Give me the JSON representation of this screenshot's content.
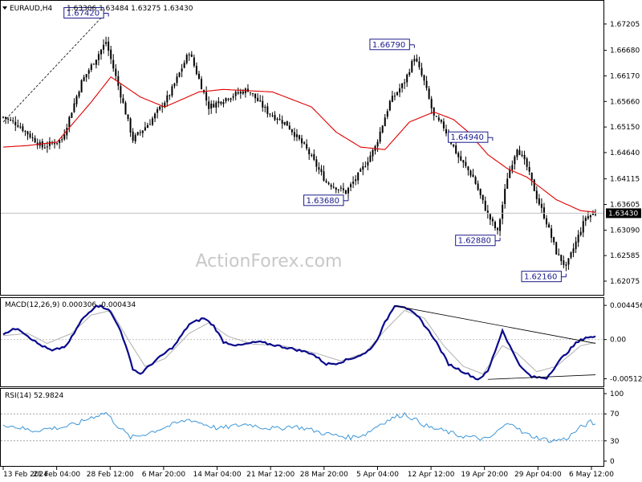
{
  "header": {
    "symbol": "EURAUD,H4",
    "ohlc": "1.63306 1.63484 1.63275 1.63430"
  },
  "watermark": "ActionForex.com",
  "colors": {
    "candle": "#000000",
    "moving_average": "#e00000",
    "macd_line": "#0a0a8c",
    "macd_signal": "#b0b0b0",
    "rsi_line": "#3c96d8",
    "tag_border": "#1a1a8c",
    "trendline": "#000000"
  },
  "chart_data": [
    {
      "type": "candlestick",
      "title": "EURAUD,H4",
      "ylim": [
        1.6185,
        1.6762
      ],
      "yticks": [
        1.67205,
        1.6668,
        1.6617,
        1.6566,
        1.6515,
        1.6464,
        1.64115,
        1.63605,
        1.6309,
        1.62585,
        1.62075
      ],
      "ytick_labels": [
        "1.67205",
        "1.66680",
        "1.66170",
        "1.65660",
        "1.65150",
        "1.64640",
        "1.64115",
        "1.63605",
        "1.63090",
        "1.62585",
        "1.62075"
      ],
      "current_price": 1.6343,
      "current_price_label": "1.63430",
      "xtick_labels": [
        "13 Feb 2024",
        "21 Feb 04:00",
        "28 Feb 12:00",
        "6 Mar 20:00",
        "14 Mar 04:00",
        "21 Mar 12:00",
        "28 Mar 20:00",
        "5 Apr 04:00",
        "12 Apr 12:00",
        "19 Apr 20:00",
        "29 Apr 04:00",
        "6 May 12:00"
      ],
      "anchors": [
        [
          0,
          1.6535
        ],
        [
          6,
          1.652
        ],
        [
          16,
          1.6475
        ],
        [
          24,
          1.649
        ],
        [
          32,
          1.6605
        ],
        [
          42,
          1.6685
        ],
        [
          46,
          1.6615
        ],
        [
          53,
          1.649
        ],
        [
          60,
          1.6525
        ],
        [
          68,
          1.658
        ],
        [
          76,
          1.6665
        ],
        [
          84,
          1.6555
        ],
        [
          92,
          1.6575
        ],
        [
          100,
          1.659
        ],
        [
          108,
          1.6545
        ],
        [
          116,
          1.652
        ],
        [
          124,
          1.647
        ],
        [
          132,
          1.6405
        ],
        [
          140,
          1.6385
        ],
        [
          146,
          1.6425
        ],
        [
          152,
          1.6475
        ],
        [
          158,
          1.6565
        ],
        [
          164,
          1.6605
        ],
        [
          168,
          1.6655
        ],
        [
          172,
          1.6605
        ],
        [
          176,
          1.6535
        ],
        [
          180,
          1.6515
        ],
        [
          186,
          1.6455
        ],
        [
          192,
          1.6415
        ],
        [
          198,
          1.634
        ],
        [
          202,
          1.6305
        ],
        [
          206,
          1.6415
        ],
        [
          210,
          1.6475
        ],
        [
          214,
          1.6435
        ],
        [
          218,
          1.6375
        ],
        [
          222,
          1.6325
        ],
        [
          226,
          1.6265
        ],
        [
          230,
          1.6235
        ],
        [
          234,
          1.6285
        ],
        [
          238,
          1.6335
        ],
        [
          242,
          1.6343
        ]
      ],
      "ma_anchors": [
        [
          0,
          1.6475
        ],
        [
          10,
          1.6478
        ],
        [
          22,
          1.6485
        ],
        [
          36,
          1.6565
        ],
        [
          44,
          1.6615
        ],
        [
          56,
          1.6575
        ],
        [
          66,
          1.6555
        ],
        [
          80,
          1.6585
        ],
        [
          90,
          1.659
        ],
        [
          110,
          1.6585
        ],
        [
          126,
          1.6555
        ],
        [
          136,
          1.6505
        ],
        [
          146,
          1.6475
        ],
        [
          156,
          1.647
        ],
        [
          166,
          1.6525
        ],
        [
          176,
          1.6545
        ],
        [
          184,
          1.653
        ],
        [
          190,
          1.6505
        ],
        [
          198,
          1.646
        ],
        [
          206,
          1.6432
        ],
        [
          214,
          1.6415
        ],
        [
          226,
          1.637
        ],
        [
          236,
          1.6348
        ],
        [
          242,
          1.6345
        ]
      ],
      "price_tags": [
        {
          "label": "1.67420",
          "price": 1.6742,
          "bar": 43,
          "side": "left"
        },
        {
          "label": "1.66790",
          "price": 1.6679,
          "bar": 168,
          "side": "left"
        },
        {
          "label": "1.63680",
          "price": 1.6368,
          "bar": 141,
          "side": "left"
        },
        {
          "label": "1.64940",
          "price": 1.6494,
          "bar": 200,
          "side": "left"
        },
        {
          "label": "1.62880",
          "price": 1.6288,
          "bar": 203,
          "side": "left"
        },
        {
          "label": "1.62160",
          "price": 1.6216,
          "bar": 230,
          "side": "left"
        }
      ]
    },
    {
      "type": "line",
      "title": "MACD(12,26,9) 0.000306 -0.000434",
      "ylim": [
        -0.0058,
        0.0051
      ],
      "yticks": [
        0.004456,
        0.0,
        -0.00512
      ],
      "ytick_labels": [
        "0.004456",
        "0.00",
        "-0.00512"
      ],
      "series": [
        {
          "anchors": [
            [
              0,
              0.0008
            ],
            [
              6,
              0.0015
            ],
            [
              14,
              -0.0005
            ],
            [
              20,
              -0.0015
            ],
            [
              26,
              -0.0008
            ],
            [
              32,
              0.0025
            ],
            [
              38,
              0.0045
            ],
            [
              43,
              0.004
            ],
            [
              48,
              0.0012
            ],
            [
              53,
              -0.0038
            ],
            [
              56,
              -0.0045
            ],
            [
              62,
              -0.0028
            ],
            [
              70,
              -0.0008
            ],
            [
              76,
              0.002
            ],
            [
              82,
              0.0028
            ],
            [
              86,
              0.0018
            ],
            [
              90,
              -0.0003
            ],
            [
              96,
              -0.0008
            ],
            [
              104,
              -0.0003
            ],
            [
              112,
              -0.0008
            ],
            [
              118,
              -0.0012
            ],
            [
              126,
              -0.0018
            ],
            [
              132,
              -0.0032
            ],
            [
              136,
              -0.0031
            ],
            [
              142,
              -0.0025
            ],
            [
              148,
              -0.0018
            ],
            [
              152,
              -0.0005
            ],
            [
              156,
              0.0022
            ],
            [
              160,
              0.0045
            ],
            [
              164,
              0.0043
            ],
            [
              170,
              0.0028
            ],
            [
              176,
              0.0002
            ],
            [
              182,
              -0.0032
            ],
            [
              188,
              -0.0042
            ],
            [
              194,
              -0.0052
            ],
            [
              198,
              -0.0042
            ],
            [
              204,
              0.0012
            ],
            [
              208,
              -0.0015
            ],
            [
              212,
              -0.0038
            ],
            [
              216,
              -0.0049
            ],
            [
              222,
              -0.005
            ],
            [
              228,
              -0.0025
            ],
            [
              234,
              -0.0005
            ],
            [
              238,
              0.0003
            ],
            [
              242,
              0.0003
            ]
          ]
        },
        {
          "anchors": [
            [
              0,
              0.0005
            ],
            [
              10,
              0.0008
            ],
            [
              18,
              -0.0005
            ],
            [
              28,
              0.0008
            ],
            [
              36,
              0.0032
            ],
            [
              44,
              0.0038
            ],
            [
              52,
              -0.0005
            ],
            [
              58,
              -0.0035
            ],
            [
              66,
              -0.0025
            ],
            [
              76,
              0.0008
            ],
            [
              84,
              0.0022
            ],
            [
              92,
              0.0004
            ],
            [
              102,
              -0.0006
            ],
            [
              114,
              -0.0008
            ],
            [
              128,
              -0.0018
            ],
            [
              138,
              -0.0028
            ],
            [
              148,
              -0.0017
            ],
            [
              156,
              0.0012
            ],
            [
              164,
              0.0038
            ],
            [
              172,
              0.0028
            ],
            [
              180,
              -0.0008
            ],
            [
              188,
              -0.0035
            ],
            [
              196,
              -0.0045
            ],
            [
              204,
              -0.0008
            ],
            [
              210,
              -0.0018
            ],
            [
              218,
              -0.0042
            ],
            [
              226,
              -0.0035
            ],
            [
              236,
              -0.0008
            ],
            [
              242,
              -0.0004
            ]
          ]
        }
      ],
      "trendlines": [
        [
          [
            160,
            0.0044
          ],
          [
            242,
            -0.0005
          ]
        ],
        [
          [
            198,
            -0.0052
          ],
          [
            242,
            -0.0046
          ]
        ]
      ]
    },
    {
      "type": "line",
      "title": "RSI(14) 52.9824",
      "ylim": [
        0,
        100
      ],
      "yticks": [
        100,
        70,
        30,
        0
      ],
      "ytick_labels": [
        "100",
        "70",
        "30",
        "0"
      ],
      "dotted_levels": [
        70,
        30
      ],
      "series": [
        {
          "anchors": [
            [
              0,
              55
            ],
            [
              6,
              50
            ],
            [
              12,
              45
            ],
            [
              18,
              48
            ],
            [
              24,
              50
            ],
            [
              30,
              55
            ],
            [
              36,
              65
            ],
            [
              42,
              72
            ],
            [
              46,
              55
            ],
            [
              52,
              35
            ],
            [
              56,
              38
            ],
            [
              62,
              45
            ],
            [
              70,
              55
            ],
            [
              76,
              62
            ],
            [
              82,
              55
            ],
            [
              88,
              48
            ],
            [
              94,
              52
            ],
            [
              100,
              55
            ],
            [
              106,
              50
            ],
            [
              112,
              48
            ],
            [
              118,
              52
            ],
            [
              124,
              48
            ],
            [
              130,
              42
            ],
            [
              136,
              38
            ],
            [
              142,
              35
            ],
            [
              148,
              40
            ],
            [
              154,
              55
            ],
            [
              160,
              65
            ],
            [
              164,
              70
            ],
            [
              168,
              62
            ],
            [
              174,
              50
            ],
            [
              180,
              45
            ],
            [
              186,
              38
            ],
            [
              192,
              35
            ],
            [
              198,
              32
            ],
            [
              204,
              50
            ],
            [
              208,
              58
            ],
            [
              212,
              42
            ],
            [
              218,
              35
            ],
            [
              224,
              30
            ],
            [
              230,
              33
            ],
            [
              236,
              50
            ],
            [
              240,
              58
            ],
            [
              242,
              53
            ]
          ]
        }
      ]
    }
  ]
}
